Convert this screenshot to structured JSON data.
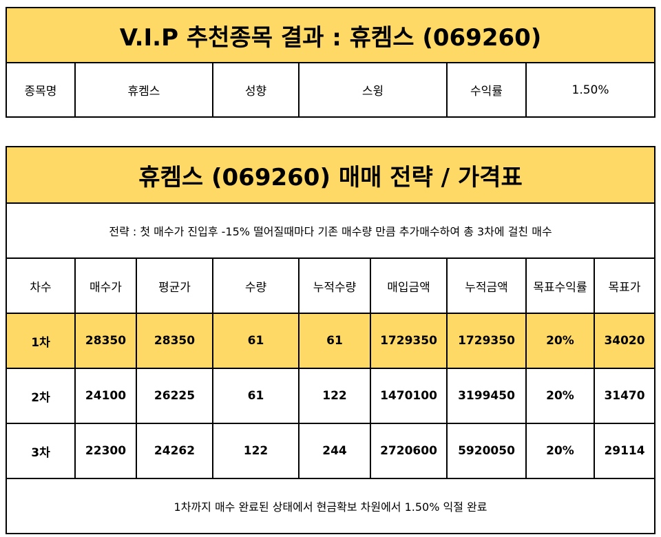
{
  "summary": {
    "title": "V.I.P 추천종목 결과 : 휴켐스 (069260)",
    "labels": {
      "name": "종목명",
      "style": "성향",
      "return": "수익률"
    },
    "values": {
      "name": "휴켐스",
      "style": "스윙",
      "return": "1.50%"
    }
  },
  "strategy_table": {
    "title": "휴켐스 (069260) 매매 전략 / 가격표",
    "strategy_note": "전략 : 첫 매수가 진입후 -15% 떨어질때마다 기존 매수량 만큼 추가매수하여 총 3차에 걸친 매수",
    "headers": [
      "차수",
      "매수가",
      "평균가",
      "수량",
      "누적수량",
      "매입금액",
      "누적금액",
      "목표수익률",
      "목표가"
    ],
    "rows": [
      [
        "1차",
        "28350",
        "28350",
        "61",
        "61",
        "1729350",
        "1729350",
        "20%",
        "34020"
      ],
      [
        "2차",
        "24100",
        "26225",
        "61",
        "122",
        "1470100",
        "3199450",
        "20%",
        "31470"
      ],
      [
        "3차",
        "22300",
        "24262",
        "122",
        "244",
        "2720600",
        "5920050",
        "20%",
        "29114"
      ]
    ],
    "footer": "1차까지 매수 완료된 상태에서 현금확보 차원에서 1.50% 익절 완료",
    "highlight_color": "#FFD966"
  }
}
